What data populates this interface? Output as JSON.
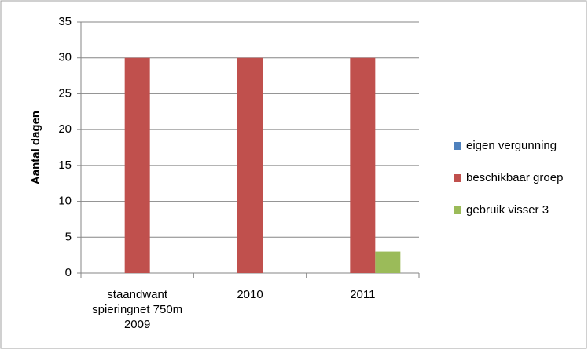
{
  "chart_data": {
    "type": "bar",
    "y_label": "Aantal dagen",
    "categories": [
      "staandwant spieringnet 750m 2009",
      "2010",
      "2011"
    ],
    "series": [
      {
        "name": "eigen vergunning",
        "color": "#4f81bd",
        "values": [
          0,
          0,
          0
        ]
      },
      {
        "name": "beschikbaar groep",
        "color": "#c0504d",
        "values": [
          30,
          30,
          30
        ]
      },
      {
        "name": "gebruik visser 3",
        "color": "#9bbb59",
        "values": [
          0,
          0,
          3
        ]
      }
    ],
    "ylim": [
      0,
      35
    ],
    "yticks": [
      0,
      5,
      10,
      15,
      20,
      25,
      30,
      35
    ],
    "grid": true,
    "legend": "right"
  }
}
